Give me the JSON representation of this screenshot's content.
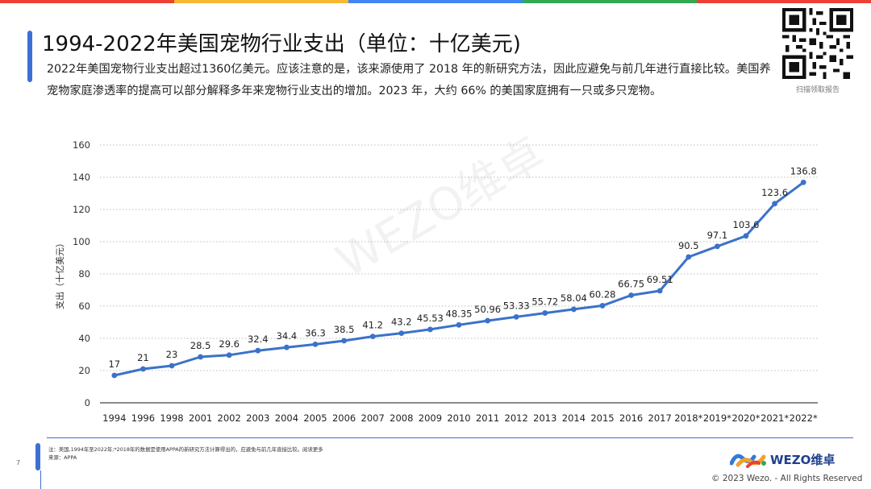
{
  "title": "1994-2022年美国宠物行业支出（单位：十亿美元)",
  "description": "2022年美国宠物行业支出超过1360亿美元。应该注意的是，该来源使用了 2018 年的新研究方法，因此应避免与前几年进行直接比较。美国养宠物家庭渗透率的提高可以部分解释多年来宠物行业支出的增加。2023 年，大约 66% 的美国家庭拥有一只或多只宠物。",
  "qr_caption": "扫描领取报告",
  "watermark": "WEZO维卓",
  "colors": {
    "accent": "#3d6fd6",
    "line": "#3b72c9",
    "topbar": [
      "#ee4035",
      "#f7b733",
      "#4285f4",
      "#34a853"
    ]
  },
  "chart_data": {
    "type": "line",
    "categories": [
      "1994",
      "1996",
      "1998",
      "2001",
      "2002",
      "2003",
      "2004",
      "2005",
      "2006",
      "2007",
      "2008",
      "2009",
      "2010",
      "2011",
      "2012",
      "2013",
      "2014",
      "2015",
      "2016",
      "2017",
      "2018*",
      "2019*",
      "2020*",
      "2021*",
      "2022*"
    ],
    "values": [
      17,
      21,
      23,
      28.5,
      29.6,
      32.4,
      34.4,
      36.3,
      38.5,
      41.2,
      43.2,
      45.53,
      48.35,
      50.96,
      53.33,
      55.72,
      58.04,
      60.28,
      66.75,
      69.51,
      90.5,
      97.1,
      103.6,
      123.6,
      136.8
    ],
    "labels": [
      "17",
      "21",
      "23",
      "28.5",
      "29.6",
      "32.4",
      "34.4",
      "36.3",
      "38.5",
      "41.2",
      "43.2",
      "45.53",
      "48.35",
      "50.96",
      "53.33",
      "55.72",
      "58.04",
      "60.28",
      "66.75",
      "69.51",
      "90.5",
      "97.1",
      "103.6",
      "123.6",
      "136.8"
    ],
    "ylabel": "支出（十亿美元）",
    "ylim": [
      0,
      160
    ],
    "yticks": [
      "0",
      "20",
      "40",
      "60",
      "80",
      "100",
      "120",
      "140",
      "160"
    ],
    "grid": true
  },
  "footer": {
    "page_number": "7",
    "note": "注：美国,1994年至2022年;*2018年的数据是使用APPA的新研究方法计算得出的，应避免与前几年直接比较。阅读更多",
    "source": "来源：APPA",
    "logo_text": "WEZO维卓",
    "copyright": "© 2023 Wezo. - All Rights Reserved"
  }
}
